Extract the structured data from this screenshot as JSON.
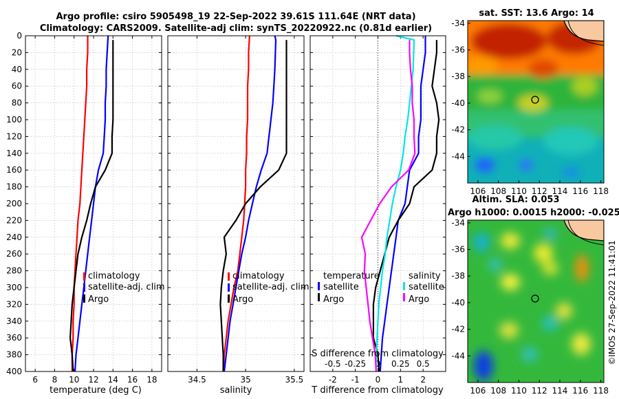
{
  "header": {
    "title_line1": "Argo profile: csiro 5905498_19 22-Sep-2022 39.61S 111.64E (NRT data)",
    "title_line2": "Climatology: CARS2009. Satellite-adj clim: synTS_20220922.nc (0.81d earlier)"
  },
  "colors": {
    "climatology": "#ff0000",
    "satellite": "#0000ff",
    "argo": "#000000",
    "t_sat": "#00e6e6",
    "s_argo": "#ff00ff"
  },
  "chart_data": [
    {
      "type": "line",
      "id": "temperature",
      "xlabel": "temperature (deg C)",
      "ylabel": "",
      "xlim": [
        5,
        19
      ],
      "ylim": [
        400,
        0
      ],
      "xticks": [
        6,
        8,
        10,
        12,
        14,
        16,
        18
      ],
      "yticks": [
        0,
        20,
        40,
        60,
        80,
        100,
        120,
        140,
        160,
        180,
        200,
        220,
        240,
        260,
        280,
        300,
        320,
        340,
        360,
        380,
        400
      ],
      "legend": {
        "position": "bottom-right",
        "entries": [
          "climatology",
          "satellite-adj. clim",
          "Argo"
        ]
      },
      "series": [
        {
          "name": "climatology",
          "color": "red",
          "x": [
            11.4,
            11.4,
            11.3,
            11.3,
            11.2,
            11.1,
            11.0,
            10.9,
            10.8,
            10.7,
            10.6,
            10.4,
            10.3,
            10.2,
            10.1,
            10.0,
            10.0,
            9.9,
            9.9,
            9.8,
            9.8
          ],
          "y": [
            0,
            20,
            40,
            60,
            80,
            100,
            120,
            140,
            160,
            180,
            200,
            220,
            240,
            260,
            280,
            300,
            320,
            340,
            360,
            380,
            400
          ]
        },
        {
          "name": "satellite-adj. clim",
          "color": "blue",
          "x": [
            13.5,
            13.4,
            13.3,
            13.3,
            13.2,
            13.2,
            13.1,
            13.0,
            12.5,
            12.2,
            12.0,
            11.8,
            11.6,
            11.4,
            11.2,
            11.0,
            10.8,
            10.6,
            10.4,
            10.2,
            10.1
          ],
          "y": [
            0,
            20,
            40,
            60,
            80,
            100,
            120,
            140,
            160,
            180,
            200,
            220,
            240,
            260,
            280,
            300,
            320,
            340,
            360,
            380,
            400
          ]
        },
        {
          "name": "Argo",
          "color": "black",
          "x": [
            14.0,
            14.0,
            14.0,
            14.0,
            14.0,
            14.0,
            13.9,
            13.9,
            13.2,
            12.2,
            11.7,
            11.3,
            10.8,
            10.4,
            10.2,
            10.0,
            9.8,
            9.7,
            9.6,
            9.8,
            9.9
          ],
          "y": [
            5,
            20,
            40,
            60,
            80,
            100,
            120,
            140,
            160,
            180,
            200,
            220,
            240,
            260,
            280,
            300,
            320,
            340,
            360,
            380,
            400
          ]
        }
      ]
    },
    {
      "type": "line",
      "id": "salinity",
      "xlabel": "salinity",
      "ylabel": "",
      "xlim": [
        34.2,
        35.6
      ],
      "ylim": [
        400,
        0
      ],
      "xticks": [
        34.5,
        35,
        35.5
      ],
      "legend": {
        "position": "bottom-right",
        "entries": [
          "climatology",
          "satellite-adj. clim",
          "Argo"
        ]
      },
      "series": [
        {
          "name": "climatology",
          "color": "red",
          "x": [
            35.04,
            35.03,
            35.03,
            35.02,
            35.02,
            35.02,
            35.01,
            35.01,
            35.0,
            35.0,
            34.99,
            34.98,
            34.96,
            34.94,
            34.92,
            34.88,
            34.85,
            34.82,
            34.8,
            34.78,
            34.77
          ],
          "y": [
            0,
            20,
            40,
            60,
            80,
            100,
            120,
            140,
            160,
            180,
            200,
            220,
            240,
            260,
            280,
            300,
            320,
            340,
            360,
            380,
            400
          ]
        },
        {
          "name": "satellite-adj. clim",
          "color": "blue",
          "x": [
            35.3,
            35.31,
            35.3,
            35.29,
            35.28,
            35.26,
            35.24,
            35.22,
            35.16,
            35.11,
            35.07,
            35.03,
            35.0,
            34.96,
            34.93,
            34.9,
            34.87,
            34.84,
            34.82,
            34.8,
            34.78
          ],
          "y": [
            0,
            5,
            40,
            60,
            80,
            100,
            120,
            140,
            160,
            180,
            200,
            220,
            240,
            260,
            280,
            300,
            320,
            340,
            360,
            380,
            400
          ]
        },
        {
          "name": "Argo",
          "color": "black",
          "x": [
            35.42,
            35.42,
            35.42,
            35.42,
            35.42,
            35.42,
            35.42,
            35.42,
            35.34,
            35.15,
            35.0,
            34.9,
            34.78,
            34.8,
            34.77,
            34.75,
            34.74,
            34.75,
            34.76,
            34.77,
            34.77
          ],
          "y": [
            5,
            20,
            40,
            60,
            80,
            100,
            120,
            140,
            160,
            180,
            200,
            220,
            240,
            260,
            280,
            300,
            320,
            340,
            360,
            380,
            400
          ]
        }
      ]
    },
    {
      "type": "line",
      "id": "difference",
      "xlabel": "T difference from climatology",
      "xlabel_top": "S difference from climatology",
      "xlim": [
        -3,
        3
      ],
      "ylim": [
        400,
        0
      ],
      "xticks": [
        -2,
        -1,
        0,
        1,
        2
      ],
      "xticks_top": [
        -0.5,
        -0.25,
        0,
        0.25,
        0.5
      ],
      "xticks_top_labels": [
        "-0.5",
        "-0.25",
        "0",
        "0.25",
        "0.5"
      ],
      "legend": {
        "position": "bottom",
        "temperature_title": "temperature",
        "salinity_title": "salinity",
        "entries": [
          "satellite",
          "Argo",
          "satellite",
          "Argo"
        ]
      },
      "series": [
        {
          "name": "T satellite",
          "color": "blue",
          "x": [
            2.1,
            2.1,
            2.0,
            1.9,
            1.9,
            1.9,
            1.8,
            1.8,
            1.4,
            1.3,
            1.2,
            0.9,
            0.8,
            0.7,
            0.6,
            0.5,
            0.4,
            0.3,
            0.2,
            0.15,
            0.1
          ],
          "y": [
            0,
            20,
            40,
            60,
            80,
            100,
            120,
            140,
            160,
            180,
            200,
            220,
            240,
            260,
            280,
            300,
            320,
            340,
            360,
            380,
            400
          ]
        },
        {
          "name": "T Argo",
          "color": "black",
          "x": [
            2.6,
            2.6,
            2.5,
            2.4,
            2.6,
            2.7,
            2.6,
            2.6,
            2.4,
            1.6,
            1.4,
            0.9,
            0.5,
            0.3,
            0.1,
            -0.1,
            -0.2,
            -0.2,
            -0.2,
            0.0,
            0.05
          ],
          "y": [
            5,
            20,
            40,
            60,
            80,
            100,
            120,
            140,
            160,
            180,
            200,
            220,
            240,
            260,
            280,
            300,
            320,
            340,
            360,
            380,
            400
          ]
        },
        {
          "name": "S satellite",
          "color": "cyan",
          "x": [
            0.2,
            0.4,
            0.39,
            0.37,
            0.35,
            0.33,
            0.3,
            0.28,
            0.25,
            0.2,
            0.16,
            0.13,
            0.1,
            0.08,
            0.05,
            0.03,
            0.01,
            0.0,
            -0.01,
            -0.02,
            -0.02
          ],
          "y": [
            0,
            5,
            40,
            60,
            80,
            100,
            120,
            140,
            160,
            180,
            200,
            220,
            240,
            260,
            280,
            300,
            320,
            340,
            360,
            380,
            400
          ]
        },
        {
          "name": "S Argo",
          "color": "magenta",
          "x": [
            0.35,
            0.35,
            0.36,
            0.38,
            0.38,
            0.4,
            0.4,
            0.41,
            0.34,
            0.15,
            0.02,
            -0.08,
            -0.18,
            -0.14,
            -0.15,
            -0.13,
            -0.11,
            -0.09,
            -0.06,
            -0.03,
            -0.02
          ],
          "y": [
            5,
            20,
            40,
            60,
            80,
            100,
            120,
            140,
            160,
            180,
            200,
            220,
            240,
            260,
            280,
            300,
            320,
            340,
            360,
            380,
            400
          ]
        }
      ]
    },
    {
      "type": "heatmap",
      "id": "sst_map",
      "title": "sat. SST: 13.6 Argo: 14",
      "xticks": [
        106,
        108,
        110,
        112,
        114,
        116,
        118
      ],
      "yticks": [
        -34,
        -36,
        -38,
        -40,
        -42,
        -44
      ],
      "xlim": [
        105,
        118.3
      ],
      "ylim": [
        -46,
        -33.8
      ],
      "argo_position": {
        "lon": 111.64,
        "lat": -39.61
      }
    },
    {
      "type": "heatmap",
      "id": "sla_map",
      "title": "Altim. SLA: 0.053",
      "subtitle": "Argo h1000: 0.0015 h2000: -0.025",
      "xticks": [
        106,
        108,
        110,
        112,
        114,
        116,
        118
      ],
      "yticks": [
        -34,
        -36,
        -38,
        -40,
        -42,
        -44
      ],
      "xlim": [
        105,
        118.3
      ],
      "ylim": [
        -46,
        -33.8
      ],
      "argo_position": {
        "lon": 111.64,
        "lat": -39.61
      }
    }
  ],
  "watermark": "©IMOS 27-Sep-2022 11:41:01"
}
